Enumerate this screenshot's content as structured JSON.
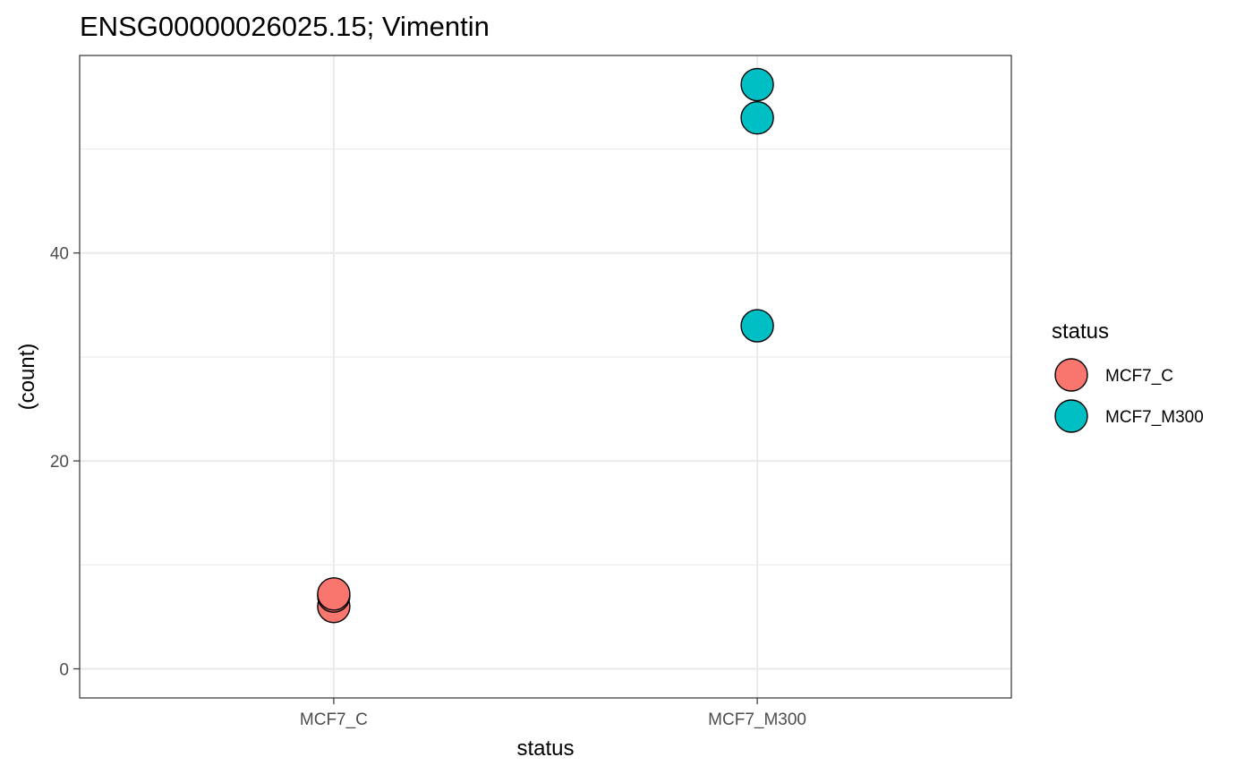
{
  "chart_data": {
    "type": "scatter",
    "title": "ENSG00000026025.15; Vimentin",
    "xlabel": "status",
    "ylabel": "(count)",
    "categories": [
      "MCF7_C",
      "MCF7_M300"
    ],
    "yticks": [
      0,
      20,
      40
    ],
    "ylim": [
      -2.8,
      59
    ],
    "grid": true,
    "legend": {
      "title": "status",
      "position": "right",
      "entries": [
        {
          "label": "MCF7_C",
          "color": "#F8766D"
        },
        {
          "label": "MCF7_M300",
          "color": "#00BFC4"
        }
      ]
    },
    "series": [
      {
        "name": "MCF7_C",
        "color": "#F8766D",
        "points": [
          {
            "x": "MCF7_C",
            "y": 6
          },
          {
            "x": "MCF7_C",
            "y": 7
          },
          {
            "x": "MCF7_C",
            "y": 7.2
          }
        ]
      },
      {
        "name": "MCF7_M300",
        "color": "#00BFC4",
        "points": [
          {
            "x": "MCF7_M300",
            "y": 33
          },
          {
            "x": "MCF7_M300",
            "y": 53
          },
          {
            "x": "MCF7_M300",
            "y": 56.2
          }
        ]
      }
    ]
  }
}
